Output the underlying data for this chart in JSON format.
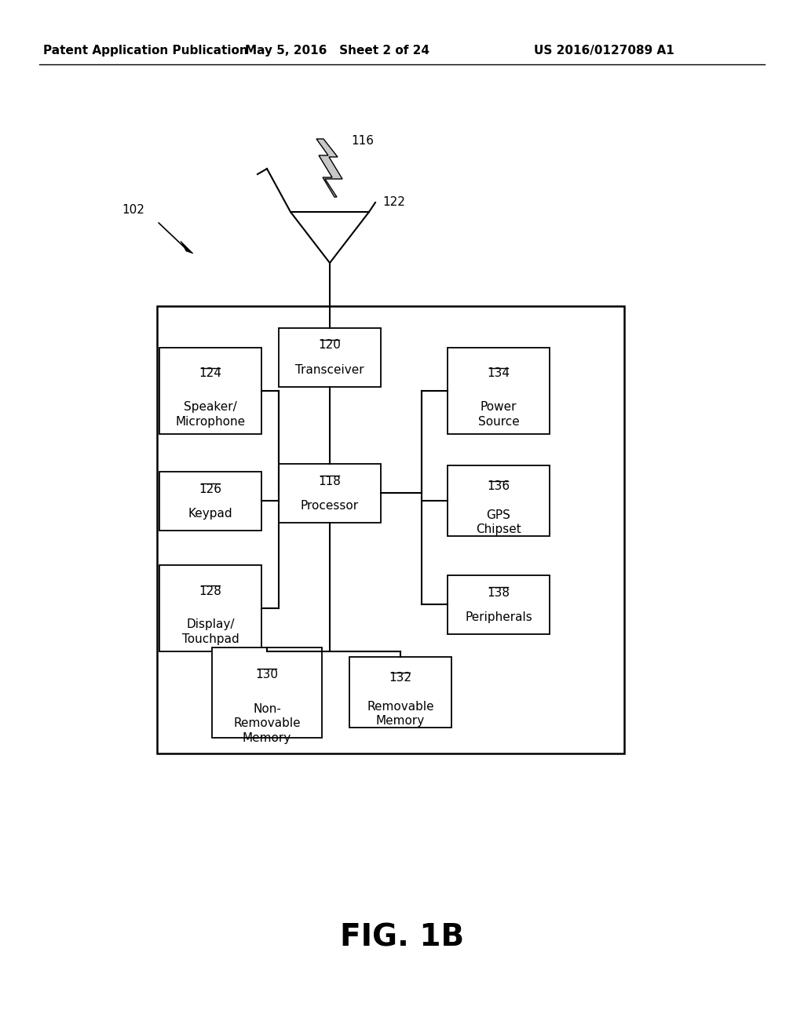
{
  "header_left": "Patent Application Publication",
  "header_mid": "May 5, 2016   Sheet 2 of 24",
  "header_right": "US 2016/0127089 A1",
  "fig_label": "FIG. 1B",
  "label_102": "102",
  "label_116": "116",
  "label_122": "122",
  "label_120": "120",
  "label_118": "118",
  "label_124": "124",
  "label_126": "126",
  "label_128": "128",
  "label_130": "130",
  "label_132": "132",
  "label_134": "134",
  "label_136": "136",
  "label_138": "138",
  "text_transceiver": "Transceiver",
  "text_processor": "Processor",
  "text_speaker": "Speaker/\nMicrophone",
  "text_keypad": "Keypad",
  "text_display": "Display/\nTouchpad",
  "text_nonremov": "Non-\nRemovable\nMemory",
  "text_removable": "Removable\nMemory",
  "text_power": "Power\nSource",
  "text_gps": "GPS\nChipset",
  "text_peripherals": "Peripherals",
  "bg_color": "#ffffff",
  "box_edge_color": "#000000",
  "line_color": "#000000",
  "font_color": "#000000"
}
